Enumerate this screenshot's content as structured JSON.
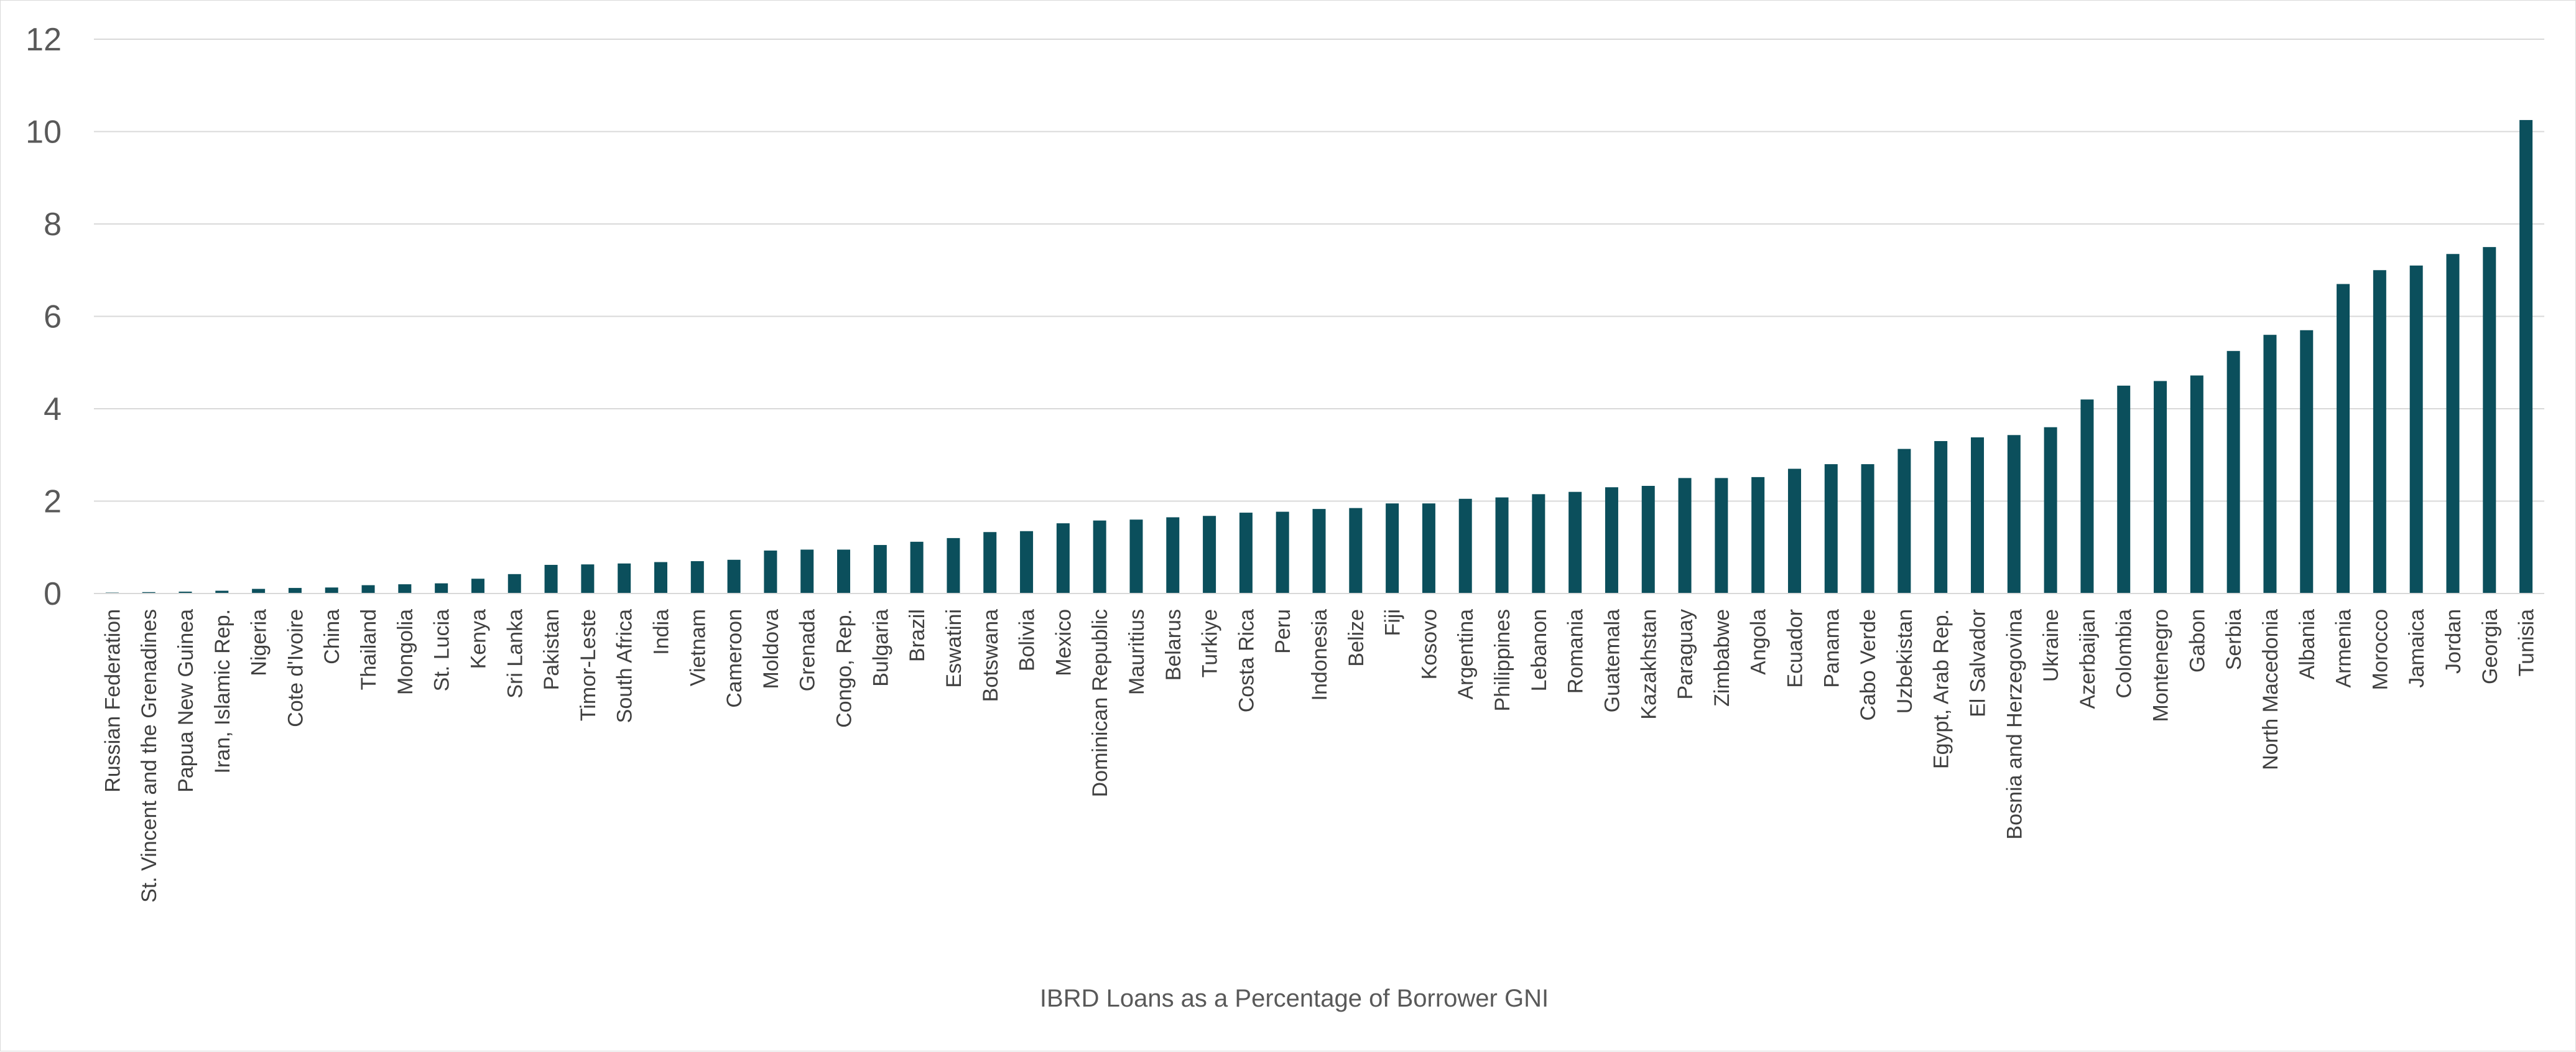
{
  "chart_data": {
    "type": "bar",
    "title": "",
    "xlabel": "IBRD Loans as a Percentage of Borrower GNI",
    "ylabel": "",
    "ylim": [
      0,
      12
    ],
    "yticks": [
      0,
      2,
      4,
      6,
      8,
      10,
      12
    ],
    "grid": true,
    "legend": "none",
    "bar_color": "#0b4f5c",
    "grid_color": "#d9d9d9",
    "categories": [
      "Russian Federation",
      "St. Vincent and the Grenadines",
      "Papua New Guinea",
      "Iran, Islamic Rep.",
      "Nigeria",
      "Cote d'Ivoire",
      "China",
      "Thailand",
      "Mongolia",
      "St. Lucia",
      "Kenya",
      "Sri Lanka",
      "Pakistan",
      "Timor-Leste",
      "South Africa",
      "India",
      "Vietnam",
      "Cameroon",
      "Moldova",
      "Grenada",
      "Congo, Rep.",
      "Bulgaria",
      "Brazil",
      "Eswatini",
      "Botswana",
      "Bolivia",
      "Mexico",
      "Dominican Republic",
      "Mauritius",
      "Belarus",
      "Turkiye",
      "Costa Rica",
      "Peru",
      "Indonesia",
      "Belize",
      "Fiji",
      "Kosovo",
      "Argentina",
      "Philippines",
      "Lebanon",
      "Romania",
      "Guatemala",
      "Kazakhstan",
      "Paraguay",
      "Zimbabwe",
      "Angola",
      "Ecuador",
      "Panama",
      "Cabo Verde",
      "Uzbekistan",
      "Egypt, Arab Rep.",
      "El Salvador",
      "Bosnia and Herzegovina",
      "Ukraine",
      "Azerbaijan",
      "Colombia",
      "Montenegro",
      "Gabon",
      "Serbia",
      "North Macedonia",
      "Albania",
      "Armenia",
      "Morocco",
      "Jamaica",
      "Jordan",
      "Georgia",
      "Tunisia"
    ],
    "values": [
      0.02,
      0.03,
      0.04,
      0.06,
      0.1,
      0.12,
      0.13,
      0.18,
      0.2,
      0.22,
      0.32,
      0.42,
      0.62,
      0.63,
      0.65,
      0.68,
      0.7,
      0.73,
      0.93,
      0.95,
      0.95,
      1.05,
      1.12,
      1.2,
      1.33,
      1.35,
      1.52,
      1.58,
      1.6,
      1.65,
      1.68,
      1.75,
      1.77,
      1.83,
      1.85,
      1.95,
      1.95,
      2.05,
      2.08,
      2.15,
      2.2,
      2.3,
      2.33,
      2.5,
      2.5,
      2.52,
      2.7,
      2.8,
      2.8,
      3.13,
      3.3,
      3.38,
      3.43,
      3.6,
      4.2,
      4.5,
      4.6,
      4.72,
      5.25,
      5.6,
      5.7,
      6.7,
      7.0,
      7.1,
      7.35,
      7.5,
      10.25
    ]
  }
}
